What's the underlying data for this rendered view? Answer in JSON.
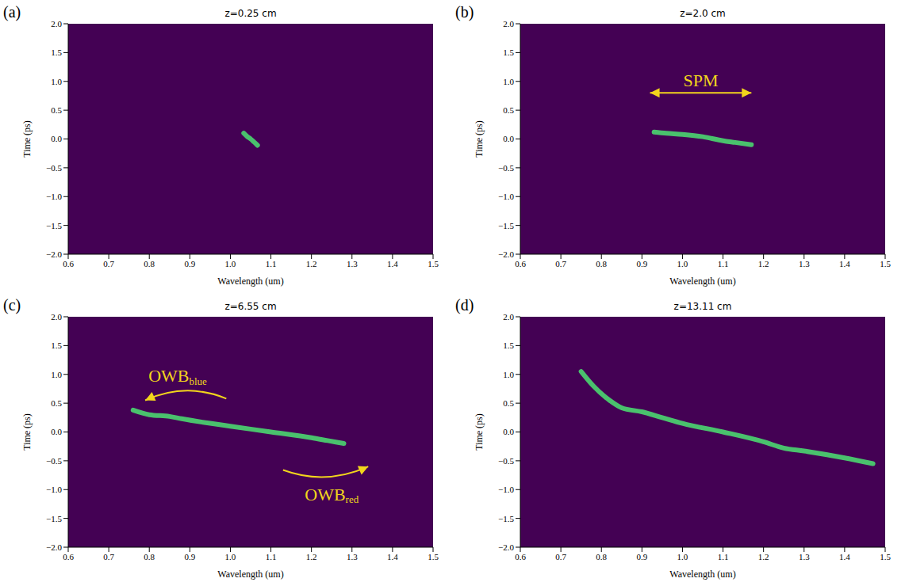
{
  "chart_data": [
    {
      "panel": "(a)",
      "title": "z=0.25 cm",
      "type": "line",
      "color": "#4ac16d",
      "xlabel": "Wavelength (um)",
      "ylabel": "Time (ps)",
      "x": [
        1.033,
        1.042,
        1.05,
        1.058,
        1.067
      ],
      "values": [
        0.1,
        0.04,
        0.0,
        -0.05,
        -0.11
      ],
      "xlim": [
        0.6,
        1.5
      ],
      "ylim": [
        -2,
        2
      ],
      "xticks": [
        0.6,
        0.7,
        0.8,
        0.9,
        {
          "value": 1,
          "label": "1.0"
        },
        1.1,
        1.2,
        1.3,
        1.4,
        1.5
      ],
      "yticks": [
        {
          "value": -2,
          "label": "−2.0"
        },
        {
          "value": -1.5,
          "label": "−1.5"
        },
        {
          "value": -1,
          "label": "−1.0"
        },
        {
          "value": -0.5,
          "label": "−0.5"
        },
        {
          "value": 0,
          "label": "0.0"
        },
        0.5,
        {
          "value": 1,
          "label": "1.0"
        },
        1.5,
        {
          "value": 2,
          "label": "2.0"
        }
      ],
      "grid": false,
      "annotations": []
    },
    {
      "panel": "(b)",
      "title": "z=2.0 cm",
      "type": "line",
      "color": "#4ac16d",
      "xlabel": "Wavelength (um)",
      "ylabel": "Time (ps)",
      "x": [
        0.93,
        0.96,
        1.0,
        1.05,
        1.1,
        1.13,
        1.17
      ],
      "values": [
        0.12,
        0.1,
        0.08,
        0.04,
        -0.03,
        -0.06,
        -0.1
      ],
      "xlim": [
        0.6,
        1.5
      ],
      "ylim": [
        -2,
        2
      ],
      "xticks": [
        0.6,
        0.7,
        0.8,
        0.9,
        {
          "value": 1,
          "label": "1.0"
        },
        1.1,
        1.2,
        1.3,
        1.4,
        1.5
      ],
      "yticks": [
        {
          "value": -2,
          "label": "−2.0"
        },
        {
          "value": -1.5,
          "label": "−1.5"
        },
        {
          "value": -1,
          "label": "−1.0"
        },
        {
          "value": -0.5,
          "label": "−0.5"
        },
        {
          "value": 0,
          "label": "0.0"
        },
        0.5,
        {
          "value": 1,
          "label": "1.0"
        },
        1.5,
        {
          "value": 2,
          "label": "2.0"
        }
      ],
      "grid": false,
      "annotations": [
        {
          "text": "SPM",
          "x": 1.045,
          "y": 1.02,
          "arrow": {
            "from": [
              0.92,
              0.8
            ],
            "to": [
              1.17,
              0.8
            ]
          },
          "arrow_style": "double"
        }
      ]
    },
    {
      "panel": "(c)",
      "title": "z=6.55 cm",
      "type": "line",
      "color": "#4ac16d",
      "xlabel": "Wavelength (um)",
      "ylabel": "Time (ps)",
      "x": [
        0.76,
        0.8,
        0.85,
        0.88,
        0.95,
        1.0,
        1.1,
        1.2,
        1.24,
        1.28
      ],
      "values": [
        0.38,
        0.3,
        0.27,
        0.23,
        0.15,
        0.1,
        0.0,
        -0.1,
        -0.15,
        -0.2
      ],
      "xlim": [
        0.6,
        1.5
      ],
      "ylim": [
        -2,
        2
      ],
      "xticks": [
        0.6,
        0.7,
        0.8,
        0.9,
        {
          "value": 1,
          "label": "1.0"
        },
        1.1,
        1.2,
        1.3,
        1.4,
        1.5
      ],
      "yticks": [
        {
          "value": -2,
          "label": "−2.0"
        },
        {
          "value": -1.5,
          "label": "−1.5"
        },
        {
          "value": -1,
          "label": "−1.0"
        },
        {
          "value": -0.5,
          "label": "−0.5"
        },
        {
          "value": 0,
          "label": "0.0"
        },
        0.5,
        {
          "value": 1,
          "label": "1.0"
        },
        1.5,
        {
          "value": 2,
          "label": "2.0"
        }
      ],
      "grid": false,
      "annotations": [
        {
          "text": "OWB",
          "subscript": "blue",
          "x": 0.87,
          "y": 0.97,
          "arrow": {
            "from": [
              0.99,
              0.58
            ],
            "to": [
              0.79,
              0.55
            ]
          },
          "arrow_style": "curved"
        },
        {
          "text": "OWB",
          "subscript": "red",
          "x": 1.25,
          "y": -1.08,
          "arrow": {
            "from": [
              1.13,
              -0.66
            ],
            "to": [
              1.34,
              -0.6
            ]
          },
          "arrow_style": "curved"
        }
      ]
    },
    {
      "panel": "(d)",
      "title": "z=13.11 cm",
      "type": "line",
      "color": "#4ac16d",
      "xlabel": "Wavelength (um)",
      "ylabel": "Time (ps)",
      "x": [
        0.75,
        0.78,
        0.82,
        0.85,
        0.9,
        0.95,
        1.0,
        1.1,
        1.2,
        1.25,
        1.3,
        1.4,
        1.47
      ],
      "values": [
        1.05,
        0.8,
        0.55,
        0.42,
        0.35,
        0.25,
        0.15,
        0.0,
        -0.17,
        -0.28,
        -0.33,
        -0.45,
        -0.55
      ],
      "xlim": [
        0.6,
        1.5
      ],
      "ylim": [
        -2,
        2
      ],
      "xticks": [
        0.6,
        0.7,
        0.8,
        0.9,
        {
          "value": 1,
          "label": "1.0"
        },
        1.1,
        1.2,
        1.3,
        1.4,
        1.5
      ],
      "yticks": [
        {
          "value": -2,
          "label": "−2.0"
        },
        {
          "value": -1.5,
          "label": "−1.5"
        },
        {
          "value": -1,
          "label": "−1.0"
        },
        {
          "value": -0.5,
          "label": "−0.5"
        },
        {
          "value": 0,
          "label": "0.0"
        },
        0.5,
        {
          "value": 1,
          "label": "1.0"
        },
        1.5,
        {
          "value": 2,
          "label": "2.0"
        }
      ],
      "grid": false,
      "annotations": []
    }
  ]
}
